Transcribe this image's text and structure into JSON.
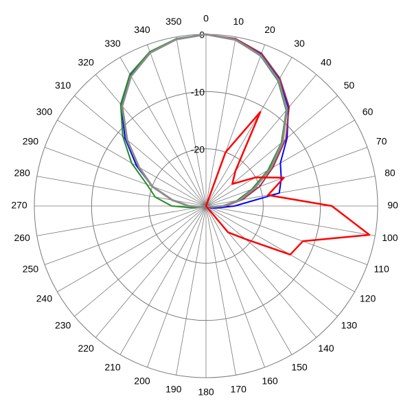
{
  "chart_data": {
    "type": "polar",
    "x": [
      0,
      10,
      20,
      30,
      40,
      50,
      60,
      70,
      80,
      90,
      100,
      110,
      120,
      130,
      140,
      150,
      160,
      170,
      180,
      190,
      200,
      210,
      220,
      230,
      240,
      250,
      260,
      270,
      280,
      290,
      300,
      310,
      320,
      330,
      340,
      350
    ],
    "ylim": [
      -30,
      0
    ],
    "yticks": [
      -20,
      -10,
      0
    ],
    "grid": true,
    "series": [
      {
        "color": "#0000ff",
        "width": 2,
        "values": [
          0,
          -0.4,
          -1.8,
          -4.4,
          -7.6,
          -11.5,
          -15,
          -16,
          -17,
          -25,
          -28,
          -29,
          -30,
          -30,
          -30,
          -30,
          -30,
          -30,
          -30,
          -30,
          -30,
          -30,
          -30,
          -30,
          -30,
          -30,
          -29,
          -27,
          -24,
          -20,
          -16,
          -11.5,
          -7,
          -3.6,
          -1.4,
          -0.3
        ]
      },
      {
        "color": "#228b22",
        "width": 2,
        "values": [
          0,
          -0.5,
          -2.1,
          -4.8,
          -8.2,
          -12.8,
          -17.5,
          -21.5,
          -24.5,
          -27,
          -29,
          -30,
          -30,
          -30,
          -30,
          -30,
          -30,
          -30,
          -30,
          -30,
          -30,
          -30,
          -30,
          -30,
          -30,
          -30,
          -28,
          -24,
          -21,
          -19,
          -15,
          -11,
          -6.8,
          -3.4,
          -1.3,
          -0.3
        ]
      },
      {
        "color": "#a0304a",
        "width": 2,
        "values": [
          0,
          -0.3,
          -1.6,
          -4.2,
          -7.4,
          -11.8,
          -16.5,
          -20,
          -23.5,
          -26.5,
          -29,
          -30,
          -30,
          -30,
          -30,
          -30,
          -30,
          -30,
          -30,
          -30,
          -30,
          -30,
          -30,
          -30,
          -30,
          -30,
          -29,
          -27,
          -24,
          -20,
          -16.5,
          -12,
          -7.2,
          -3.8,
          -1.5,
          -0.4
        ]
      },
      {
        "color": "#8c8c8c",
        "width": 3,
        "values": [
          0,
          -0.5,
          -2,
          -4.6,
          -8,
          -12.5,
          -17,
          -21,
          -24,
          -27,
          -29,
          -30,
          -30,
          -30,
          -30,
          -30,
          -30,
          -30,
          -30,
          -30,
          -30,
          -30,
          -30,
          -30,
          -30,
          -30,
          -29,
          -27,
          -24,
          -20,
          -16.5,
          -12,
          -7.2,
          -3.8,
          -1.5,
          -0.4
        ]
      },
      {
        "color": "#ff0000",
        "width": 2.5,
        "values": [
          -30,
          -30,
          -20,
          -11,
          -22,
          -24,
          -20,
          -15.5,
          -19,
          -8,
          -1,
          -12,
          -13,
          -21,
          -24,
          -30,
          -30,
          -30,
          -30,
          -30,
          -30,
          -30,
          -30,
          -30,
          -30,
          -30,
          -30,
          -30,
          -30,
          -30,
          -30,
          -30,
          -30,
          -30,
          -30,
          -30
        ]
      }
    ]
  }
}
